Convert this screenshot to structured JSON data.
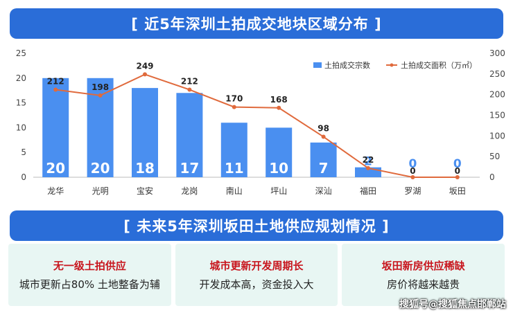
{
  "top_banner": "[ 近5年深圳土拍成交地块区域分布 ]",
  "chart_data": {
    "type": "bar",
    "categories": [
      "龙华",
      "光明",
      "宝安",
      "龙岗",
      "南山",
      "坪山",
      "深汕",
      "福田",
      "罗湖",
      "坂田"
    ],
    "series": [
      {
        "name": "土拍成交宗数",
        "type": "bar",
        "axis": "left",
        "values": [
          20,
          20,
          18,
          17,
          11,
          10,
          7,
          2,
          0,
          0
        ]
      },
      {
        "name": "土拍成交面积（万㎡）",
        "type": "line",
        "axis": "right",
        "values": [
          212,
          198,
          249,
          212,
          170,
          168,
          98,
          22,
          0,
          0
        ]
      }
    ],
    "left_ticks": [
      0,
      5,
      10,
      15,
      20,
      25
    ],
    "right_ticks": [
      0,
      50,
      100,
      150,
      200,
      250,
      300
    ],
    "ylim_left": [
      0,
      25
    ],
    "ylim_right": [
      0,
      300
    ],
    "legend_position": "top-right",
    "colors": {
      "bar": "#4a8ff0",
      "line": "#e06a3c"
    }
  },
  "bottom_banner": "[ 未来5年深圳坂田土地供应规划情况 ]",
  "cards": [
    {
      "title": "无一级土拍供应",
      "text": "城市更新占80% 土地整备为辅"
    },
    {
      "title": "城市更新开发周期长",
      "text": "开发成本高，资金投入大"
    },
    {
      "title": "坂田新房供应稀缺",
      "text": "房价将越来越贵"
    }
  ],
  "watermark": "搜狐号@搜狐焦点邯郸站"
}
